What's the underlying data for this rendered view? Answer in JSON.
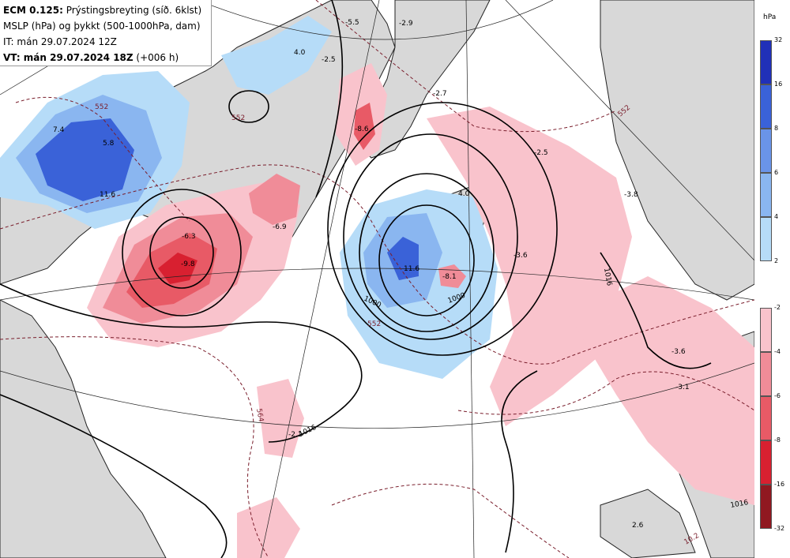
{
  "header": {
    "line1_bold": "ECM 0.125:",
    "line1_rest": " Prýstingsbreyting (síð. 6klst)",
    "line2": "MSLP (hPa) og þykkt (500-1000hPa, dam)",
    "line3": "IT: mán 29.07.2024 12Z",
    "line4_bold": "VT: mán 29.07.2024 18Z",
    "line4_rest": " (+006 h)"
  },
  "legend": {
    "unit": "hPa",
    "blue_ticks": [
      "32",
      "16",
      "8",
      "6",
      "4",
      "2"
    ],
    "blue_colors": [
      "#2030b8",
      "#3a62d8",
      "#6a94e8",
      "#8ab6f0",
      "#b6dcf8"
    ],
    "red_ticks": [
      "-2",
      "-4",
      "-6",
      "-8",
      "-16",
      "-32"
    ],
    "red_colors": [
      "#f9c3cc",
      "#f08c98",
      "#e85a66",
      "#d82030",
      "#901820"
    ]
  },
  "map_labels": [
    "7.4",
    "5.8",
    "11.6",
    "-6.3",
    "-9.8",
    "-6.9",
    "4.0",
    "11.6",
    "-8.1",
    "-2.5",
    "-5.5",
    "-2.9",
    "4.0",
    "-2.7",
    "-2.5",
    "-3.8",
    "-3.6",
    "-8.6",
    "-3.6",
    "-3.1",
    "-2.1",
    "2.6",
    "1000",
    "1000",
    "1016",
    "1016",
    "1016",
    "552",
    "552",
    "552",
    "552",
    "564",
    "10.2"
  ]
}
